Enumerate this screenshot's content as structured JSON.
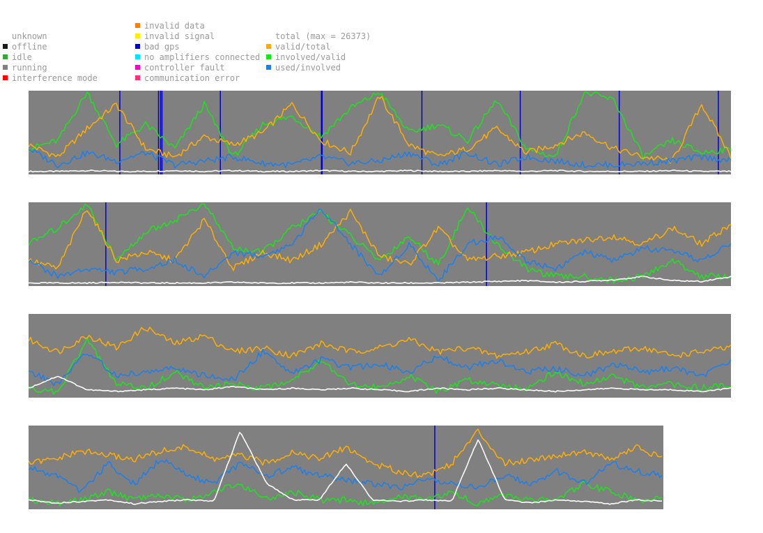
{
  "legend": {
    "status": [
      {
        "label": "unknown",
        "color": "#9a9a9a",
        "swatch": false
      },
      {
        "label": "offline",
        "color": "#1a1a1a",
        "swatch": true
      },
      {
        "label": "idle",
        "color": "#3aa63a",
        "swatch": true
      },
      {
        "label": "running",
        "color": "#808080",
        "swatch": true
      },
      {
        "label": "interference mode",
        "color": "#ff0000",
        "swatch": true
      }
    ],
    "errors": [
      {
        "label": "invalid data",
        "color": "#ff7f00",
        "swatch": true
      },
      {
        "label": "invalid signal",
        "color": "#ffee00",
        "swatch": true
      },
      {
        "label": "bad gps",
        "color": "#0000cc",
        "swatch": true
      },
      {
        "label": "no amplifiers connected",
        "color": "#00e5ff",
        "swatch": true
      },
      {
        "label": "controller fault",
        "color": "#ff00cc",
        "swatch": true
      },
      {
        "label": "communication error",
        "color": "#ff3377",
        "swatch": true
      }
    ],
    "ratios": [
      {
        "label": "total (max = 26373)",
        "color": "#ffffff",
        "swatch": false
      },
      {
        "label": "valid/total",
        "color": "#ffae00",
        "swatch": true
      },
      {
        "label": "involved/valid",
        "color": "#19e619",
        "swatch": true
      },
      {
        "label": "used/involved",
        "color": "#1a7ff0",
        "swatch": true
      }
    ]
  },
  "chart_data": {
    "type": "line",
    "total_max": 26373,
    "background_status": "running",
    "series": [
      {
        "name": "total (max = 26373)",
        "color": "#ffffff"
      },
      {
        "name": "valid/total",
        "color": "#ffae00"
      },
      {
        "name": "involved/valid",
        "color": "#19e619"
      },
      {
        "name": "used/involved",
        "color": "#1a7ff0"
      }
    ],
    "panels": [
      {
        "bad_gps_markers": [
          0.13,
          0.185,
          0.188,
          0.19,
          0.273,
          0.417,
          0.418,
          0.56,
          0.7,
          0.841,
          0.982
        ],
        "total": [
          0.02,
          0.02,
          0.03,
          0.02,
          0.02,
          0.03,
          0.02,
          0.03,
          0.02,
          0.02,
          0.03,
          0.02,
          0.02,
          0.03,
          0.02,
          0.02,
          0.03,
          0.02,
          0.03,
          0.02,
          0.02,
          0.02,
          0.03,
          0.02,
          0.02
        ],
        "valid": [
          0.35,
          0.2,
          0.55,
          0.85,
          0.3,
          0.2,
          0.45,
          0.35,
          0.5,
          0.85,
          0.4,
          0.25,
          0.95,
          0.35,
          0.2,
          0.3,
          0.55,
          0.25,
          0.35,
          0.5,
          0.3,
          0.2,
          0.15,
          0.85,
          0.2
        ],
        "involved": [
          0.3,
          0.4,
          1.0,
          0.35,
          0.6,
          0.3,
          0.85,
          0.2,
          0.6,
          0.7,
          0.45,
          0.8,
          1.0,
          0.5,
          0.6,
          0.4,
          0.9,
          0.3,
          0.2,
          1.0,
          0.9,
          0.2,
          0.4,
          0.25,
          0.3
        ],
        "used": [
          0.3,
          0.1,
          0.25,
          0.15,
          0.25,
          0.1,
          0.15,
          0.2,
          0.12,
          0.1,
          0.2,
          0.12,
          0.15,
          0.25,
          0.1,
          0.25,
          0.1,
          0.2,
          0.15,
          0.1,
          0.1,
          0.12,
          0.15,
          0.2,
          0.15
        ]
      },
      {
        "bad_gps_markers": [
          0.11,
          0.652
        ],
        "total": [
          0.02,
          0.02,
          0.02,
          0.03,
          0.02,
          0.02,
          0.02,
          0.03,
          0.02,
          0.02,
          0.02,
          0.03,
          0.02,
          0.02,
          0.02,
          0.03,
          0.04,
          0.05,
          0.03,
          0.04,
          0.06,
          0.1,
          0.05,
          0.04,
          0.1
        ],
        "valid": [
          0.3,
          0.2,
          0.95,
          0.3,
          0.4,
          0.3,
          0.8,
          0.2,
          0.4,
          0.3,
          0.5,
          0.9,
          0.35,
          0.25,
          0.7,
          0.3,
          0.35,
          0.4,
          0.5,
          0.55,
          0.6,
          0.5,
          0.7,
          0.5,
          0.75
        ],
        "involved": [
          0.5,
          0.7,
          1.0,
          0.3,
          0.65,
          0.8,
          1.0,
          0.45,
          0.4,
          0.7,
          0.9,
          0.6,
          0.3,
          0.6,
          0.25,
          0.95,
          0.5,
          0.2,
          0.1,
          0.1,
          0.05,
          0.1,
          0.3,
          0.1,
          0.1
        ],
        "used": [
          0.3,
          0.1,
          0.2,
          0.15,
          0.2,
          0.3,
          0.1,
          0.4,
          0.35,
          0.5,
          0.95,
          0.5,
          0.1,
          0.5,
          0.05,
          0.5,
          0.6,
          0.3,
          0.2,
          0.4,
          0.3,
          0.45,
          0.4,
          0.3,
          0.5
        ]
      },
      {
        "bad_gps_markers": [],
        "total": [
          0.1,
          0.25,
          0.08,
          0.06,
          0.08,
          0.1,
          0.08,
          0.12,
          0.08,
          0.1,
          0.08,
          0.1,
          0.08,
          0.06,
          0.1,
          0.08,
          0.1,
          0.08,
          0.06,
          0.08,
          0.1,
          0.08,
          0.08,
          0.06,
          0.1
        ],
        "valid": [
          0.7,
          0.55,
          0.75,
          0.6,
          0.85,
          0.65,
          0.75,
          0.55,
          0.6,
          0.5,
          0.65,
          0.55,
          0.6,
          0.7,
          0.55,
          0.6,
          0.5,
          0.55,
          0.65,
          0.5,
          0.55,
          0.6,
          0.5,
          0.55,
          0.6
        ],
        "involved": [
          0.1,
          0.05,
          0.7,
          0.15,
          0.1,
          0.3,
          0.1,
          0.15,
          0.1,
          0.2,
          0.45,
          0.15,
          0.1,
          0.25,
          0.05,
          0.2,
          0.15,
          0.1,
          0.3,
          0.15,
          0.25,
          0.1,
          0.15,
          0.1,
          0.15
        ],
        "used": [
          0.3,
          0.15,
          0.55,
          0.25,
          0.3,
          0.35,
          0.25,
          0.2,
          0.55,
          0.3,
          0.45,
          0.35,
          0.4,
          0.3,
          0.5,
          0.35,
          0.45,
          0.3,
          0.35,
          0.25,
          0.4,
          0.3,
          0.35,
          0.25,
          0.45
        ]
      },
      {
        "bad_gps_markers": [
          0.64
        ],
        "total": [
          0.1,
          0.06,
          0.08,
          0.1,
          0.05,
          0.08,
          0.1,
          0.08,
          0.95,
          0.3,
          0.1,
          0.1,
          0.55,
          0.1,
          0.08,
          0.1,
          0.08,
          0.85,
          0.1,
          0.06,
          0.1,
          0.08,
          0.05,
          0.1,
          0.08
        ],
        "valid": [
          0.55,
          0.6,
          0.7,
          0.65,
          0.6,
          0.7,
          0.75,
          0.6,
          0.65,
          0.55,
          0.7,
          0.6,
          0.75,
          0.55,
          0.45,
          0.4,
          0.55,
          0.95,
          0.55,
          0.6,
          0.65,
          0.7,
          0.6,
          0.75,
          0.6
        ],
        "involved": [
          0.1,
          0.05,
          0.1,
          0.2,
          0.1,
          0.15,
          0.1,
          0.2,
          0.3,
          0.1,
          0.2,
          0.1,
          0.1,
          0.05,
          0.15,
          0.1,
          0.2,
          0.05,
          0.15,
          0.1,
          0.1,
          0.3,
          0.2,
          0.1,
          0.1
        ],
        "used": [
          0.5,
          0.4,
          0.2,
          0.55,
          0.3,
          0.6,
          0.4,
          0.3,
          0.55,
          0.4,
          0.5,
          0.4,
          0.35,
          0.3,
          0.25,
          0.35,
          0.3,
          0.25,
          0.4,
          0.3,
          0.45,
          0.3,
          0.55,
          0.45,
          0.4
        ]
      }
    ]
  }
}
